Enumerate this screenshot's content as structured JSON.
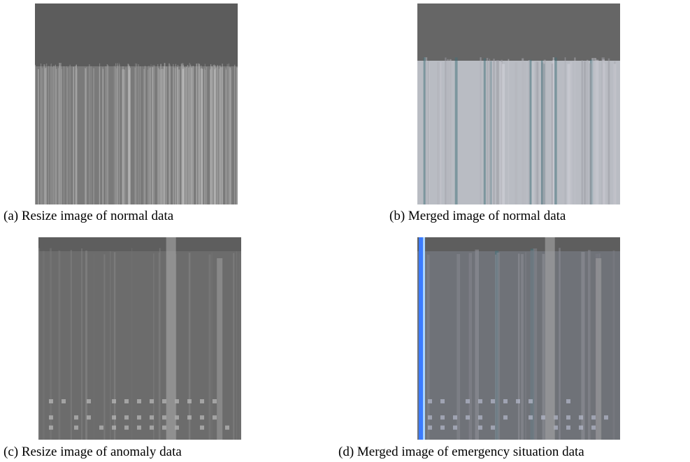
{
  "figure": {
    "panels": [
      {
        "caption": "(a) Resize image of normal data"
      },
      {
        "caption": "(b) Merged image of normal data"
      },
      {
        "caption": "(c) Resize image of anomaly data"
      },
      {
        "caption": "(d) Merged image of emergency situation data"
      }
    ]
  }
}
